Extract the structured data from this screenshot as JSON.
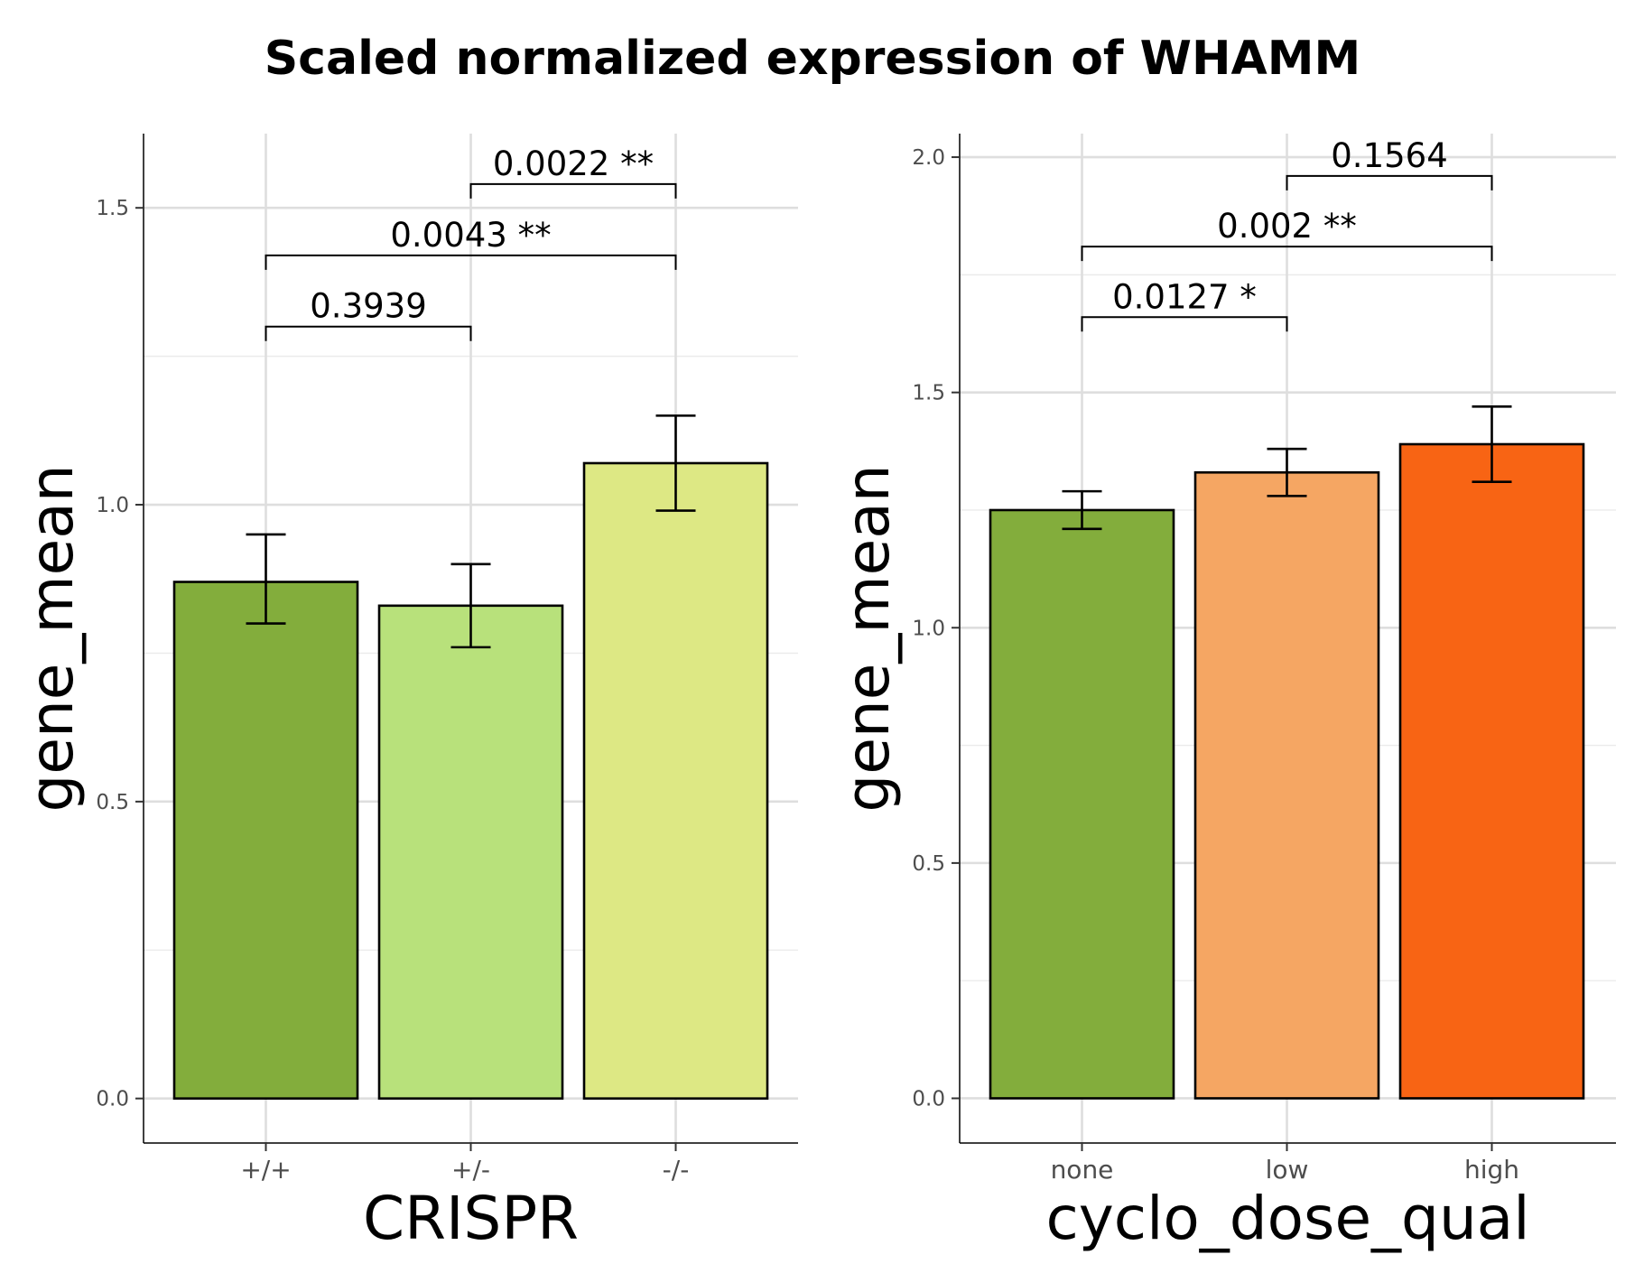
{
  "title": "Scaled normalized expression of WHAMM",
  "chart_data": [
    {
      "type": "bar",
      "xlabel": "CRISPR",
      "ylabel": "gene_mean",
      "categories": [
        "+/+",
        "+/-",
        "-/-"
      ],
      "values": [
        0.87,
        0.83,
        1.07
      ],
      "error_low": [
        0.8,
        0.76,
        0.99
      ],
      "error_high": [
        0.95,
        0.9,
        1.15
      ],
      "colors": [
        "#83ad3c",
        "#b8e17b",
        "#dde884"
      ],
      "ylim": [
        -0.075,
        1.625
      ],
      "yticks": [
        0.0,
        0.5,
        1.0,
        1.5
      ],
      "ytick_labels": [
        "0.0",
        "0.5",
        "1.0",
        "1.5"
      ],
      "grid": true,
      "comparisons": [
        {
          "from": "+/+",
          "to": "+/-",
          "label": "0.3939",
          "y": 1.3
        },
        {
          "from": "+/+",
          "to": "-/-",
          "label": "0.0043 **",
          "y": 1.42
        },
        {
          "from": "+/-",
          "to": "-/-",
          "label": "0.0022 **",
          "y": 1.54
        }
      ]
    },
    {
      "type": "bar",
      "xlabel": "cyclo_dose_qual",
      "ylabel": "gene_mean",
      "categories": [
        "none",
        "low",
        "high"
      ],
      "values": [
        1.25,
        1.33,
        1.39
      ],
      "error_low": [
        1.21,
        1.28,
        1.31
      ],
      "error_high": [
        1.29,
        1.38,
        1.47
      ],
      "colors": [
        "#83ad3c",
        "#f5a663",
        "#f86414"
      ],
      "ylim": [
        -0.095,
        2.05
      ],
      "yticks": [
        0.0,
        0.5,
        1.0,
        1.5,
        2.0
      ],
      "ytick_labels": [
        "0.0",
        "0.5",
        "1.0",
        "1.5",
        "2.0"
      ],
      "grid": true,
      "comparisons": [
        {
          "from": "none",
          "to": "low",
          "label": "0.0127 *",
          "y": 1.66
        },
        {
          "from": "none",
          "to": "high",
          "label": "0.002 **",
          "y": 1.81
        },
        {
          "from": "low",
          "to": "high",
          "label": "0.1564",
          "y": 1.96
        }
      ]
    }
  ]
}
